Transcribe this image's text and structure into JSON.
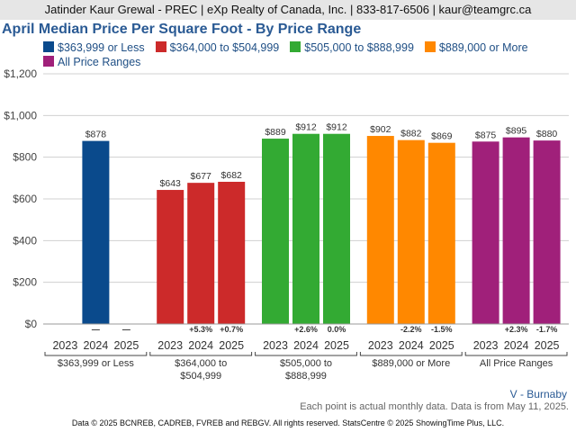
{
  "header": {
    "text": "Jatinder Kaur Grewal - PREC | eXp Realty of Canada, Inc. | 833-817-6506 | kaur@teamgrc.ca"
  },
  "chart_data": {
    "type": "bar",
    "title": "April Median Price Per Square Foot - By Price Range",
    "xlabel": "",
    "ylabel": "",
    "ylim": [
      0,
      1200
    ],
    "yticks": [
      "$0",
      "$200",
      "$400",
      "$600",
      "$800",
      "$1,000",
      "$1,200"
    ],
    "grid": true,
    "legend_position": "top",
    "years": [
      "2023",
      "2024",
      "2025"
    ],
    "groups": [
      {
        "name": "$363,999 or Less",
        "label_lines": [
          "$363,999 or Less"
        ],
        "color": "#0a4a8c",
        "values": [
          null,
          878,
          null
        ],
        "value_labels": [
          "",
          "$878",
          ""
        ],
        "change_labels": [
          "",
          "—",
          "—"
        ]
      },
      {
        "name": "$364,000 to $504,999",
        "label_lines": [
          "$364,000 to",
          "$504,999"
        ],
        "color": "#cc2a2a",
        "values": [
          643,
          677,
          682
        ],
        "value_labels": [
          "$643",
          "$677",
          "$682"
        ],
        "change_labels": [
          "",
          "+5.3%",
          "+0.7%"
        ]
      },
      {
        "name": "$505,000 to $888,999",
        "label_lines": [
          "$505,000 to",
          "$888,999"
        ],
        "color": "#33aa33",
        "values": [
          889,
          912,
          912
        ],
        "value_labels": [
          "$889",
          "$912",
          "$912"
        ],
        "change_labels": [
          "",
          "+2.6%",
          "0.0%"
        ]
      },
      {
        "name": "$889,000 or More",
        "label_lines": [
          "$889,000 or More"
        ],
        "color": "#ff8800",
        "values": [
          902,
          882,
          869
        ],
        "value_labels": [
          "$902",
          "$882",
          "$869"
        ],
        "change_labels": [
          "",
          "-2.2%",
          "-1.5%"
        ]
      },
      {
        "name": "All Price Ranges",
        "label_lines": [
          "All Price Ranges"
        ],
        "color": "#a0207a",
        "values": [
          875,
          895,
          880
        ],
        "value_labels": [
          "$875",
          "$895",
          "$880"
        ],
        "change_labels": [
          "",
          "+2.3%",
          "-1.7%"
        ]
      }
    ]
  },
  "area_label": "V - Burnaby",
  "note": "Each point is actual monthly data. Data is from May 11, 2025.",
  "footer": "Data © 2025 BCNREB, CADREB, FVREB and REBGV. All rights reserved. StatsCentre © 2025 ShowingTime Plus, LLC."
}
